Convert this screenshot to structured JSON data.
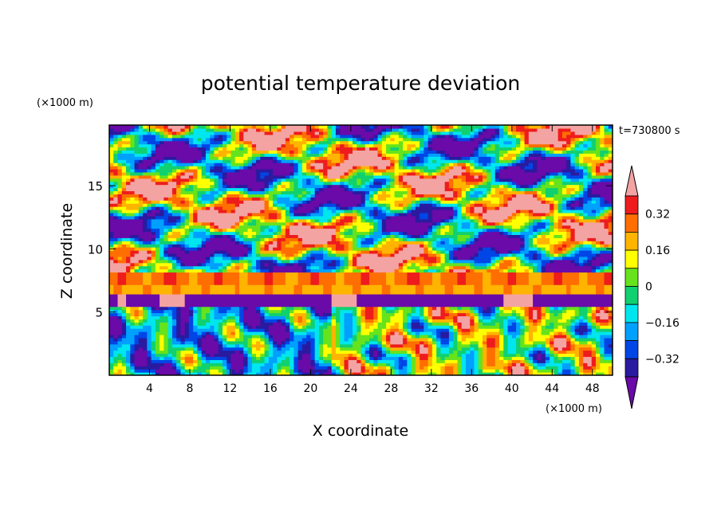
{
  "chart_data": {
    "type": "heatmap",
    "title": "potential temperature deviation",
    "time_label": "t=730800 s",
    "xlabel": "X coordinate",
    "ylabel": "Z coordinate",
    "x_unit": "(×1000 m)",
    "y_unit": "(×1000 m)",
    "xlim": [
      0,
      50
    ],
    "ylim": [
      0,
      19.8
    ],
    "x_ticks": [
      4,
      8,
      12,
      16,
      20,
      24,
      28,
      32,
      36,
      40,
      44,
      48
    ],
    "y_ticks": [
      5,
      10,
      15
    ],
    "colorbar": {
      "levels": [
        -0.4,
        -0.32,
        -0.24,
        -0.16,
        -0.08,
        0,
        0.08,
        0.16,
        0.24,
        0.32,
        0.4
      ],
      "colors": [
        "#6a0aa8",
        "#2a1aa0",
        "#0046e6",
        "#00a0ff",
        "#00e6ee",
        "#10d070",
        "#66e31c",
        "#ffff00",
        "#ffb400",
        "#ff6e00",
        "#ee1c1c",
        "#f4a3a3"
      ],
      "tick_labels": [
        "0.32",
        "0.16",
        "0",
        "−0.16",
        "−0.32"
      ],
      "extend": "both"
    },
    "features": [
      {
        "z_range": [
          8.2,
          19.8
        ],
        "value": "banded alternating positive (pink/red) and negative (purple) anomalies with green/blue transitions"
      },
      {
        "z_range": [
          7.2,
          8.2
        ],
        "value": 0.28
      },
      {
        "z_range": [
          6.4,
          7.2
        ],
        "value": 0.22
      },
      {
        "z_range": [
          5.5,
          6.4
        ],
        "value": -0.4
      },
      {
        "z_range": [
          0,
          5.5
        ],
        "value": "wave-like mixed anomalies, negative on the left half, positive cells on the right half"
      }
    ]
  }
}
